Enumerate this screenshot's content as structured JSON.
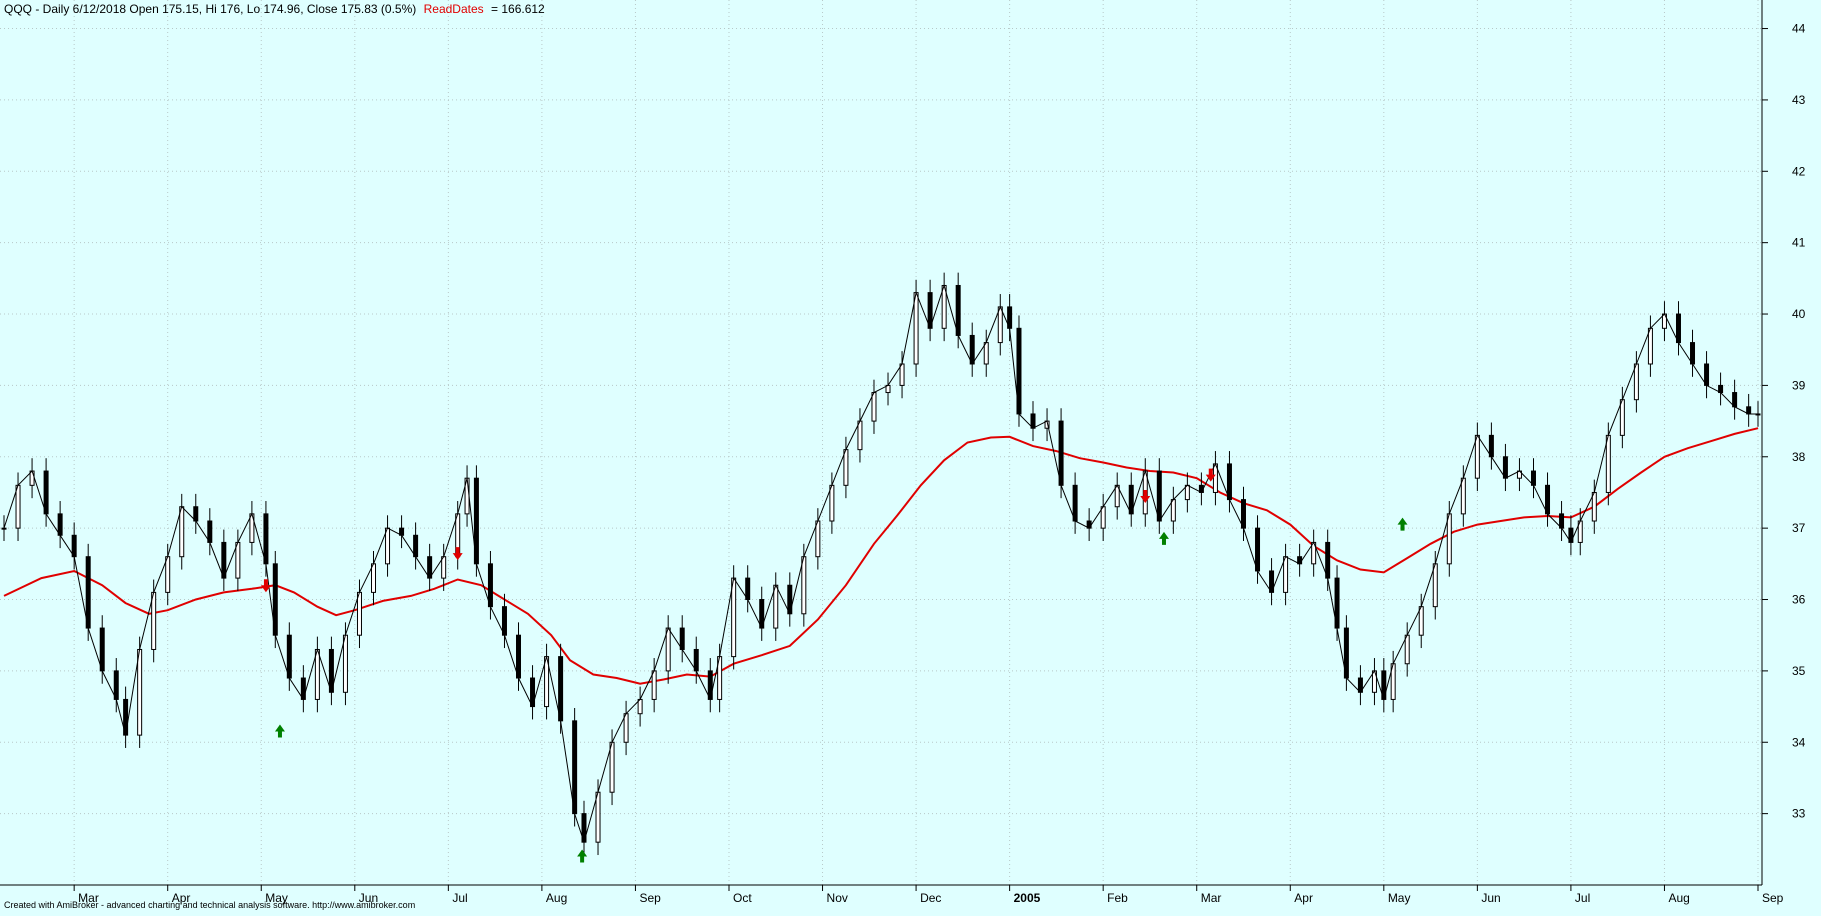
{
  "header": {
    "symbol_info": "QQQ - Daily 6/12/2018 Open 175.15, Hi 176, Lo 174.96, Close 175.83 (0.5%)",
    "indicator_name": "ReadDates",
    "indicator_value": "= 166.612"
  },
  "footer": {
    "credit": "Created with AmiBroker - advanced charting and technical analysis software. http://www.amibroker.com"
  },
  "colors": {
    "background": "#dfffff",
    "grid": "#b8c8c8",
    "candle": "#000000",
    "ma_line": "#e00000",
    "buy_arrow": "#008000",
    "sell_arrow": "#e00000",
    "indicator_label": "#e00000"
  },
  "chart_data": {
    "type": "line",
    "ylim": [
      32,
      44.4
    ],
    "y_ticks": [
      33,
      34,
      35,
      36,
      37,
      38,
      39,
      40,
      41,
      42,
      43,
      44
    ],
    "x_range": [
      0,
      18.75
    ],
    "x_ticks": [
      {
        "label": "Mar",
        "x": 0.75,
        "bold": false
      },
      {
        "label": "Apr",
        "x": 1.75,
        "bold": false
      },
      {
        "label": "May",
        "x": 2.75,
        "bold": false
      },
      {
        "label": "Jun",
        "x": 3.75,
        "bold": false
      },
      {
        "label": "Jul",
        "x": 4.75,
        "bold": false
      },
      {
        "label": "Aug",
        "x": 5.75,
        "bold": false
      },
      {
        "label": "Sep",
        "x": 6.75,
        "bold": false
      },
      {
        "label": "Oct",
        "x": 7.75,
        "bold": false
      },
      {
        "label": "Nov",
        "x": 8.75,
        "bold": false
      },
      {
        "label": "Dec",
        "x": 9.75,
        "bold": false
      },
      {
        "label": "2005",
        "x": 10.75,
        "bold": true
      },
      {
        "label": "Feb",
        "x": 11.75,
        "bold": false
      },
      {
        "label": "Mar",
        "x": 12.75,
        "bold": false
      },
      {
        "label": "Apr",
        "x": 13.75,
        "bold": false
      },
      {
        "label": "May",
        "x": 14.75,
        "bold": false
      },
      {
        "label": "Jun",
        "x": 15.75,
        "bold": false
      },
      {
        "label": "Jul",
        "x": 16.75,
        "bold": false
      },
      {
        "label": "Aug",
        "x": 17.75,
        "bold": false
      },
      {
        "label": "Sep",
        "x": 18.75,
        "bold": false
      }
    ],
    "x_ticks_note": "",
    "grid": true,
    "price_series": [
      [
        0.0,
        37.0
      ],
      [
        0.15,
        37.6
      ],
      [
        0.3,
        37.8
      ],
      [
        0.45,
        37.2
      ],
      [
        0.6,
        36.9
      ],
      [
        0.75,
        36.6
      ],
      [
        0.9,
        35.6
      ],
      [
        1.05,
        35.0
      ],
      [
        1.2,
        34.6
      ],
      [
        1.3,
        34.1
      ],
      [
        1.45,
        35.3
      ],
      [
        1.6,
        36.1
      ],
      [
        1.75,
        36.6
      ],
      [
        1.9,
        37.3
      ],
      [
        2.05,
        37.1
      ],
      [
        2.2,
        36.8
      ],
      [
        2.35,
        36.3
      ],
      [
        2.5,
        36.8
      ],
      [
        2.65,
        37.2
      ],
      [
        2.8,
        36.5
      ],
      [
        2.9,
        35.5
      ],
      [
        3.05,
        34.9
      ],
      [
        3.2,
        34.6
      ],
      [
        3.35,
        35.3
      ],
      [
        3.5,
        34.7
      ],
      [
        3.65,
        35.5
      ],
      [
        3.8,
        36.1
      ],
      [
        3.95,
        36.5
      ],
      [
        4.1,
        37.0
      ],
      [
        4.25,
        36.9
      ],
      [
        4.4,
        36.6
      ],
      [
        4.55,
        36.3
      ],
      [
        4.7,
        36.6
      ],
      [
        4.85,
        37.2
      ],
      [
        4.95,
        37.7
      ],
      [
        5.05,
        36.5
      ],
      [
        5.2,
        35.9
      ],
      [
        5.35,
        35.5
      ],
      [
        5.5,
        34.9
      ],
      [
        5.65,
        34.5
      ],
      [
        5.8,
        35.2
      ],
      [
        5.95,
        34.3
      ],
      [
        6.1,
        33.0
      ],
      [
        6.2,
        32.6
      ],
      [
        6.35,
        33.3
      ],
      [
        6.5,
        34.0
      ],
      [
        6.65,
        34.4
      ],
      [
        6.8,
        34.6
      ],
      [
        6.95,
        35.0
      ],
      [
        7.1,
        35.6
      ],
      [
        7.25,
        35.3
      ],
      [
        7.4,
        35.0
      ],
      [
        7.55,
        34.6
      ],
      [
        7.65,
        35.2
      ],
      [
        7.8,
        36.3
      ],
      [
        7.95,
        36.0
      ],
      [
        8.1,
        35.6
      ],
      [
        8.25,
        36.2
      ],
      [
        8.4,
        35.8
      ],
      [
        8.55,
        36.6
      ],
      [
        8.7,
        37.1
      ],
      [
        8.85,
        37.6
      ],
      [
        9.0,
        38.1
      ],
      [
        9.15,
        38.5
      ],
      [
        9.3,
        38.9
      ],
      [
        9.45,
        39.0
      ],
      [
        9.6,
        39.3
      ],
      [
        9.75,
        40.3
      ],
      [
        9.9,
        39.8
      ],
      [
        10.05,
        40.4
      ],
      [
        10.2,
        39.7
      ],
      [
        10.35,
        39.3
      ],
      [
        10.5,
        39.6
      ],
      [
        10.65,
        40.1
      ],
      [
        10.75,
        39.8
      ],
      [
        10.85,
        38.6
      ],
      [
        11.0,
        38.4
      ],
      [
        11.15,
        38.5
      ],
      [
        11.3,
        37.6
      ],
      [
        11.45,
        37.1
      ],
      [
        11.6,
        37.0
      ],
      [
        11.75,
        37.3
      ],
      [
        11.9,
        37.6
      ],
      [
        12.05,
        37.2
      ],
      [
        12.2,
        37.8
      ],
      [
        12.35,
        37.1
      ],
      [
        12.5,
        37.4
      ],
      [
        12.65,
        37.6
      ],
      [
        12.8,
        37.5
      ],
      [
        12.95,
        37.9
      ],
      [
        13.1,
        37.4
      ],
      [
        13.25,
        37.0
      ],
      [
        13.4,
        36.4
      ],
      [
        13.55,
        36.1
      ],
      [
        13.7,
        36.6
      ],
      [
        13.85,
        36.5
      ],
      [
        14.0,
        36.8
      ],
      [
        14.15,
        36.3
      ],
      [
        14.25,
        35.6
      ],
      [
        14.35,
        34.9
      ],
      [
        14.5,
        34.7
      ],
      [
        14.65,
        35.0
      ],
      [
        14.75,
        34.6
      ],
      [
        14.85,
        35.1
      ],
      [
        15.0,
        35.5
      ],
      [
        15.15,
        35.9
      ],
      [
        15.3,
        36.5
      ],
      [
        15.45,
        37.2
      ],
      [
        15.6,
        37.7
      ],
      [
        15.75,
        38.3
      ],
      [
        15.9,
        38.0
      ],
      [
        16.05,
        37.7
      ],
      [
        16.2,
        37.8
      ],
      [
        16.35,
        37.6
      ],
      [
        16.5,
        37.2
      ],
      [
        16.65,
        37.0
      ],
      [
        16.75,
        36.8
      ],
      [
        16.85,
        37.1
      ],
      [
        17.0,
        37.5
      ],
      [
        17.15,
        38.3
      ],
      [
        17.3,
        38.8
      ],
      [
        17.45,
        39.3
      ],
      [
        17.6,
        39.8
      ],
      [
        17.75,
        40.0
      ],
      [
        17.9,
        39.6
      ],
      [
        18.05,
        39.3
      ],
      [
        18.2,
        39.0
      ],
      [
        18.35,
        38.9
      ],
      [
        18.5,
        38.7
      ],
      [
        18.65,
        38.6
      ],
      [
        18.75,
        38.6
      ]
    ],
    "ma_series": [
      [
        0.0,
        36.05
      ],
      [
        0.4,
        36.3
      ],
      [
        0.75,
        36.4
      ],
      [
        1.05,
        36.2
      ],
      [
        1.3,
        35.95
      ],
      [
        1.55,
        35.8
      ],
      [
        1.75,
        35.85
      ],
      [
        2.05,
        36.0
      ],
      [
        2.35,
        36.1
      ],
      [
        2.65,
        36.15
      ],
      [
        2.9,
        36.2
      ],
      [
        3.1,
        36.1
      ],
      [
        3.35,
        35.9
      ],
      [
        3.55,
        35.78
      ],
      [
        3.75,
        35.85
      ],
      [
        4.05,
        35.98
      ],
      [
        4.35,
        36.05
      ],
      [
        4.6,
        36.15
      ],
      [
        4.85,
        36.28
      ],
      [
        5.1,
        36.2
      ],
      [
        5.35,
        36.0
      ],
      [
        5.6,
        35.8
      ],
      [
        5.85,
        35.5
      ],
      [
        6.05,
        35.15
      ],
      [
        6.3,
        34.95
      ],
      [
        6.55,
        34.9
      ],
      [
        6.8,
        34.82
      ],
      [
        7.05,
        34.88
      ],
      [
        7.3,
        34.95
      ],
      [
        7.55,
        34.92
      ],
      [
        7.8,
        35.1
      ],
      [
        8.1,
        35.22
      ],
      [
        8.4,
        35.35
      ],
      [
        8.7,
        35.72
      ],
      [
        9.0,
        36.2
      ],
      [
        9.3,
        36.78
      ],
      [
        9.55,
        37.18
      ],
      [
        9.8,
        37.6
      ],
      [
        10.05,
        37.95
      ],
      [
        10.3,
        38.2
      ],
      [
        10.55,
        38.27
      ],
      [
        10.75,
        38.28
      ],
      [
        11.0,
        38.15
      ],
      [
        11.25,
        38.08
      ],
      [
        11.5,
        37.98
      ],
      [
        11.75,
        37.92
      ],
      [
        12.0,
        37.85
      ],
      [
        12.25,
        37.8
      ],
      [
        12.5,
        37.78
      ],
      [
        12.75,
        37.7
      ],
      [
        13.0,
        37.5
      ],
      [
        13.25,
        37.35
      ],
      [
        13.5,
        37.25
      ],
      [
        13.75,
        37.05
      ],
      [
        14.0,
        36.75
      ],
      [
        14.25,
        36.55
      ],
      [
        14.5,
        36.42
      ],
      [
        14.75,
        36.38
      ],
      [
        15.0,
        36.58
      ],
      [
        15.25,
        36.78
      ],
      [
        15.5,
        36.95
      ],
      [
        15.75,
        37.05
      ],
      [
        16.0,
        37.1
      ],
      [
        16.25,
        37.15
      ],
      [
        16.5,
        37.17
      ],
      [
        16.75,
        37.15
      ],
      [
        17.0,
        37.3
      ],
      [
        17.25,
        37.55
      ],
      [
        17.5,
        37.78
      ],
      [
        17.75,
        38.0
      ],
      [
        18.0,
        38.12
      ],
      [
        18.25,
        38.22
      ],
      [
        18.5,
        38.32
      ],
      [
        18.75,
        38.4
      ]
    ],
    "signals": [
      {
        "type": "buy",
        "x": 2.95,
        "y": 34.15
      },
      {
        "type": "sell",
        "x": 2.8,
        "y": 36.2
      },
      {
        "type": "sell",
        "x": 4.85,
        "y": 36.65
      },
      {
        "type": "buy",
        "x": 6.18,
        "y": 32.4
      },
      {
        "type": "sell",
        "x": 12.2,
        "y": 37.45
      },
      {
        "type": "buy",
        "x": 12.4,
        "y": 36.85
      },
      {
        "type": "sell",
        "x": 12.9,
        "y": 37.75
      },
      {
        "type": "buy",
        "x": 14.95,
        "y": 37.05
      }
    ]
  }
}
